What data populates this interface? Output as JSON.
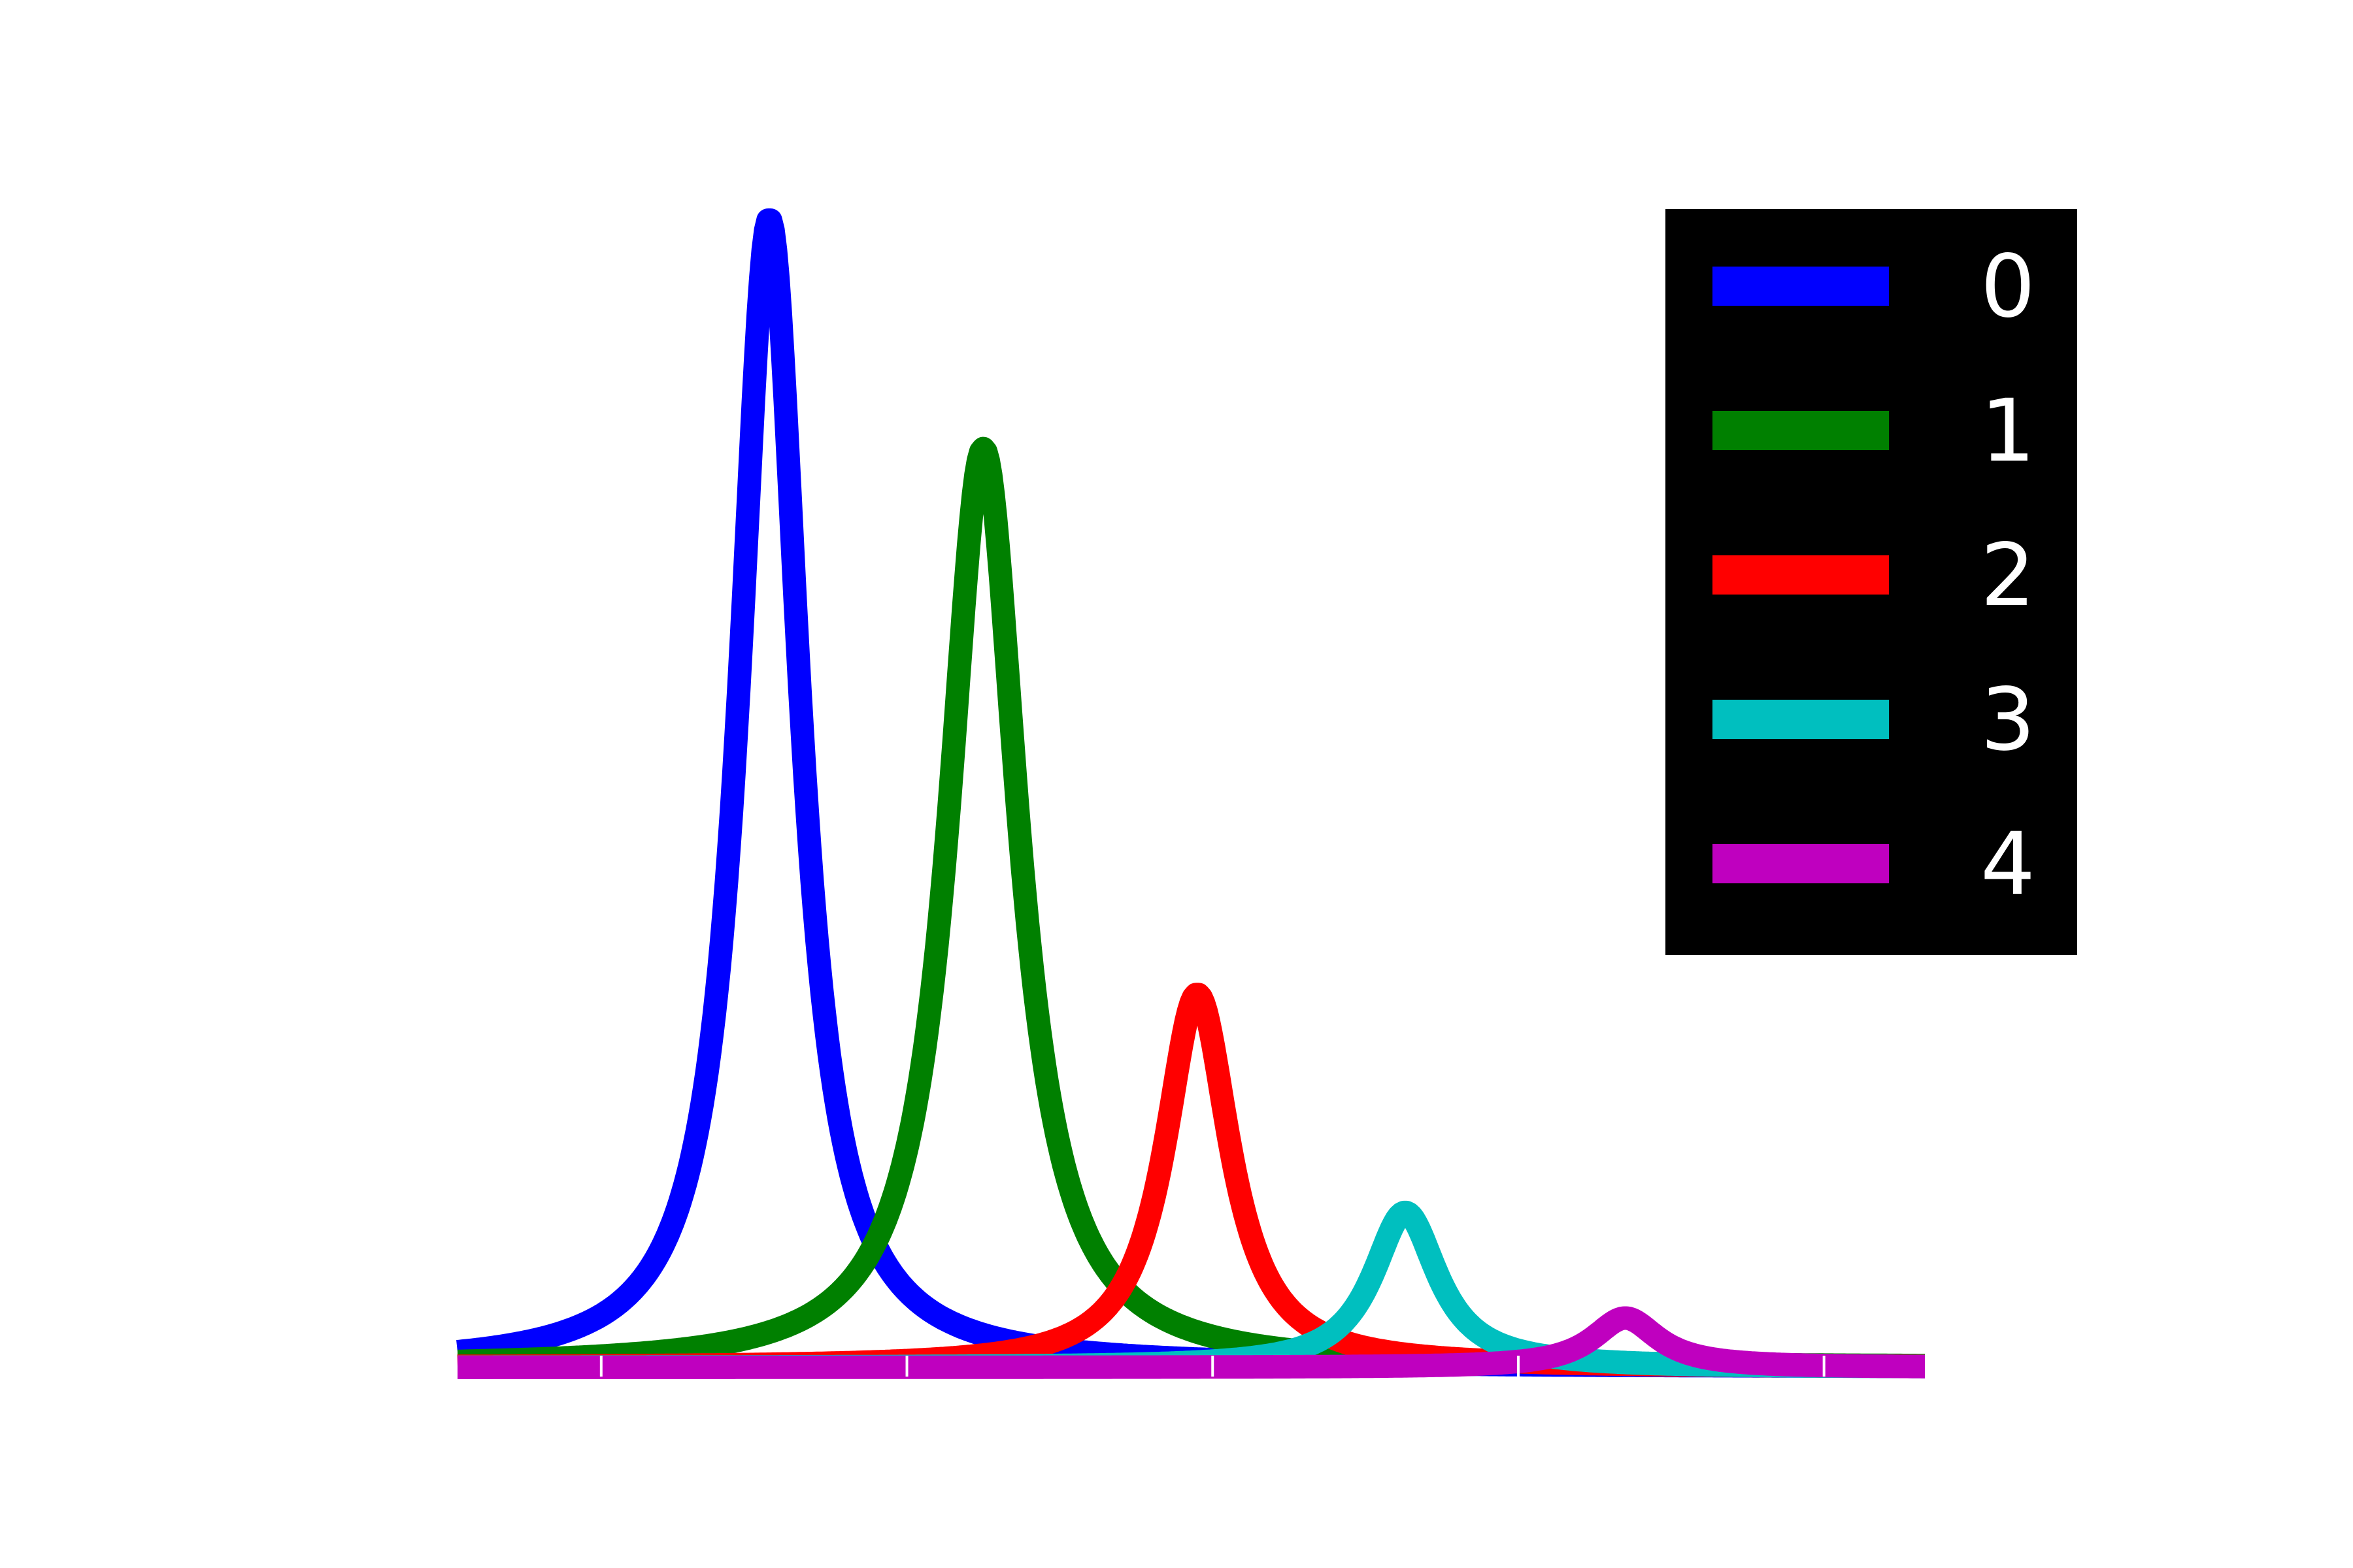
{
  "chart_data": {
    "type": "line",
    "title": "",
    "xlabel": "",
    "ylabel": "",
    "x_range": [
      -0.47,
      4.33
    ],
    "ylim": [
      0,
      1.0
    ],
    "xtick_values": [
      0,
      1,
      2,
      3,
      4
    ],
    "grid": false,
    "legend_placement": "top-right",
    "legend_background": "#000000",
    "legend_text_color": "#ffffff",
    "series": [
      {
        "name": "0",
        "color": "#0000ff",
        "center": 0.55,
        "peak": 1.0,
        "width": 0.12
      },
      {
        "name": "1",
        "color": "#008000",
        "center": 1.25,
        "peak": 0.8,
        "width": 0.14
      },
      {
        "name": "2",
        "color": "#ff0000",
        "center": 1.95,
        "peak": 0.325,
        "width": 0.13
      },
      {
        "name": "3",
        "color": "#00bfbf",
        "center": 2.63,
        "peak": 0.135,
        "width": 0.13
      },
      {
        "name": "4",
        "color": "#bf00bf",
        "center": 3.35,
        "peak": 0.043,
        "width": 0.13
      }
    ]
  }
}
